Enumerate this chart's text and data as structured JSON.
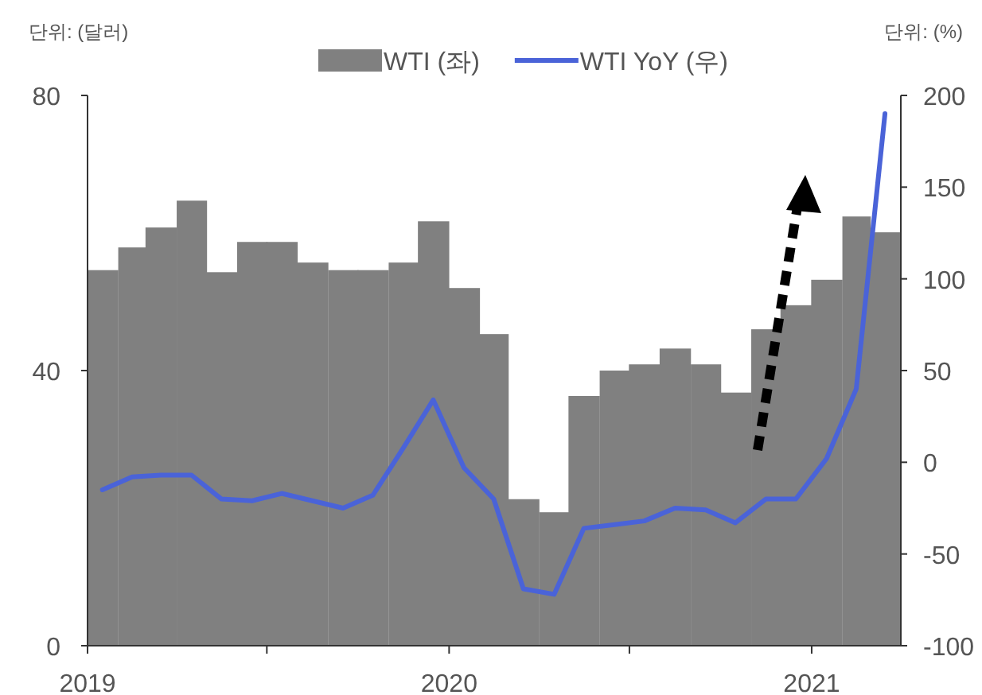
{
  "chart_data": {
    "type": "bar",
    "ylabel": "단위: (달러)",
    "y2label": "단위: (%)",
    "legend": "top",
    "grid": false,
    "x": [
      "2019-01-16",
      "2019-02-15",
      "2019-03-16",
      "2019-04-16",
      "2019-05-16",
      "2019-06-16",
      "2019-07-16",
      "2019-08-16",
      "2019-09-16",
      "2019-10-16",
      "2019-11-16",
      "2019-12-16",
      "2020-01-16",
      "2020-02-15",
      "2020-03-16",
      "2020-04-16",
      "2020-05-16",
      "2020-06-16",
      "2020-07-16",
      "2020-08-16",
      "2020-09-16",
      "2020-10-16",
      "2020-11-16",
      "2020-12-16",
      "2021-01-16",
      "2021-02-15",
      "2021-03-16"
    ],
    "xlim": [
      "2019-01",
      "2021-04"
    ],
    "xticks": [
      {
        "value": "2019-01",
        "label": "2019"
      },
      {
        "value": "2019-07",
        "label": null
      },
      {
        "value": "2020-01",
        "label": "2020"
      },
      {
        "value": "2020-07",
        "label": null
      },
      {
        "value": "2021-01",
        "label": "2021"
      }
    ],
    "ylim": [
      0,
      80
    ],
    "yticks": [
      0,
      40,
      80
    ],
    "y2lim": [
      -100,
      200
    ],
    "y2ticks": [
      -100,
      -50,
      0,
      50,
      100,
      150,
      200
    ],
    "series": [
      {
        "name": "WTI (좌)",
        "color": "#808080",
        "values": [
          54.6,
          57.9,
          60.8,
          64.7,
          54.3,
          58.7,
          58.7,
          55.7,
          54.6,
          54.6,
          55.7,
          61.7,
          52.0,
          45.3,
          21.3,
          19.4,
          36.3,
          40.0,
          40.9,
          43.2,
          40.9,
          36.8,
          46.0,
          49.5,
          53.2,
          62.4,
          60.1
        ]
      },
      {
        "name": "WTI YoY (우)",
        "type": "line",
        "axis": "y2",
        "color": "#4a63d8",
        "values": [
          -15,
          -8,
          -7,
          -7,
          -20,
          -21,
          -17,
          -21,
          -25,
          -18,
          8,
          34,
          -3,
          -20,
          -69,
          -72,
          -36,
          -34,
          -32,
          -25,
          -26,
          -33,
          -20,
          -20,
          2,
          40,
          190
        ]
      }
    ]
  }
}
